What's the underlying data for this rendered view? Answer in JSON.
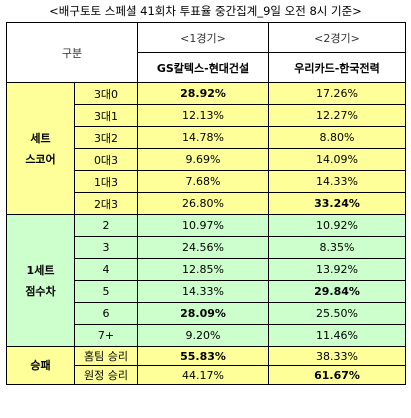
{
  "title": "<배구토토 스페셜 41회차 투표율 중간집계_9일 오전 8시 기준>",
  "header": {
    "gubun": "구분",
    "game1": "<1경기>",
    "game2": "<2경기>",
    "team1": "GS칼텍스-현대건설",
    "team2": "우리카드-한국전력"
  },
  "sections": [
    {
      "category": [
        "세트",
        "스코어"
      ],
      "color": "#ffff99",
      "rows": [
        {
          "label": "3대0",
          "v1": "28.92%",
          "v2": "17.26%",
          "hi": 1
        },
        {
          "label": "3대1",
          "v1": "12.13%",
          "v2": "12.27%",
          "hi": 0
        },
        {
          "label": "3대2",
          "v1": "14.78%",
          "v2": "8.80%",
          "hi": 0
        },
        {
          "label": "0대3",
          "v1": "9.69%",
          "v2": "14.09%",
          "hi": 0
        },
        {
          "label": "1대3",
          "v1": "7.68%",
          "v2": "14.33%",
          "hi": 0
        },
        {
          "label": "2대3",
          "v1": "26.80%",
          "v2": "33.24%",
          "hi": 2
        }
      ]
    },
    {
      "category": [
        "1세트",
        "점수차"
      ],
      "color": "#ccffcc",
      "rows": [
        {
          "label": "2",
          "v1": "10.97%",
          "v2": "10.92%",
          "hi": 0
        },
        {
          "label": "3",
          "v1": "24.56%",
          "v2": "8.35%",
          "hi": 0
        },
        {
          "label": "4",
          "v1": "12.85%",
          "v2": "13.92%",
          "hi": 0
        },
        {
          "label": "5",
          "v1": "14.33%",
          "v2": "29.84%",
          "hi": 2
        },
        {
          "label": "6",
          "v1": "28.09%",
          "v2": "25.50%",
          "hi": 1
        },
        {
          "label": "7+",
          "v1": "9.20%",
          "v2": "11.46%",
          "hi": 0
        }
      ]
    },
    {
      "category": [
        "승패"
      ],
      "color": "#ffff99",
      "rows": [
        {
          "label": "홈팀 승리",
          "v1": "55.83%",
          "v2": "38.33%",
          "hi": 1
        },
        {
          "label": "원정 승리",
          "v1": "44.17%",
          "v2": "61.67%",
          "hi": 2
        }
      ]
    }
  ]
}
